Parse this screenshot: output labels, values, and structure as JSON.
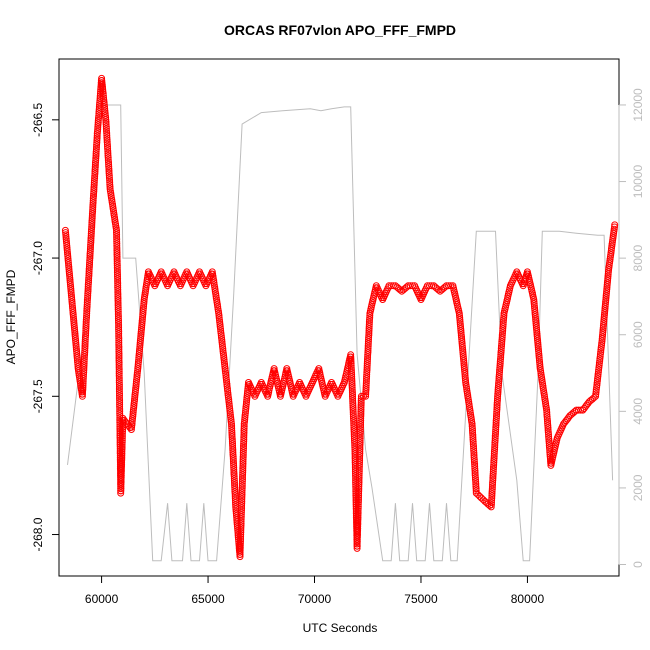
{
  "chart_data": {
    "type": "scatter",
    "title": "ORCAS RF07vlon APO_FFF_FMPD",
    "xlabel": "UTC Seconds",
    "ylabel": "APO_FFF_FMPD",
    "xlim": [
      58000,
      84300
    ],
    "ylim": [
      -268.15,
      -266.28
    ],
    "y2lim": [
      -300,
      13200
    ],
    "x_ticks": [
      60000,
      65000,
      70000,
      75000,
      80000
    ],
    "x_tick_labels": [
      "60000",
      "65000",
      "70000",
      "75000",
      "80000"
    ],
    "y_ticks": [
      -268.0,
      -267.5,
      -267.0,
      -266.5
    ],
    "y_tick_labels": [
      "-268.0",
      "-267.5",
      "-267.0",
      "-266.5"
    ],
    "y2_ticks": [
      0,
      2000,
      4000,
      6000,
      8000,
      10000,
      12000
    ],
    "y2_tick_labels": [
      "0",
      "2000",
      "4000",
      "6000",
      "8000",
      "10000",
      "12000"
    ],
    "grid": false,
    "marker_color": "#ff0000",
    "secondary_color": "#bdbdbd",
    "series": [
      {
        "role": "primary-markers",
        "points": [
          [
            58300,
            -266.9
          ],
          [
            58600,
            -267.15
          ],
          [
            58900,
            -267.4
          ],
          [
            59100,
            -267.5
          ],
          [
            59300,
            -267.2
          ],
          [
            59600,
            -266.8
          ],
          [
            59800,
            -266.55
          ],
          [
            60000,
            -266.35
          ],
          [
            60200,
            -266.5
          ],
          [
            60400,
            -266.75
          ],
          [
            60700,
            -266.9
          ],
          [
            60800,
            -267.25
          ],
          [
            60900,
            -267.85
          ],
          [
            61000,
            -267.58
          ],
          [
            61200,
            -267.6
          ],
          [
            61400,
            -267.62
          ],
          [
            61700,
            -267.4
          ],
          [
            62000,
            -267.15
          ],
          [
            62200,
            -267.05
          ],
          [
            62500,
            -267.1
          ],
          [
            62800,
            -267.05
          ],
          [
            63100,
            -267.1
          ],
          [
            63400,
            -267.05
          ],
          [
            63700,
            -267.1
          ],
          [
            64000,
            -267.05
          ],
          [
            64300,
            -267.1
          ],
          [
            64600,
            -267.05
          ],
          [
            64900,
            -267.1
          ],
          [
            65200,
            -267.05
          ],
          [
            65500,
            -267.2
          ],
          [
            65800,
            -267.4
          ],
          [
            66100,
            -267.6
          ],
          [
            66300,
            -267.9
          ],
          [
            66500,
            -268.08
          ],
          [
            66700,
            -267.6
          ],
          [
            66900,
            -267.45
          ],
          [
            67200,
            -267.5
          ],
          [
            67500,
            -267.45
          ],
          [
            67800,
            -267.5
          ],
          [
            68100,
            -267.4
          ],
          [
            68400,
            -267.5
          ],
          [
            68700,
            -267.4
          ],
          [
            69000,
            -267.5
          ],
          [
            69300,
            -267.45
          ],
          [
            69600,
            -267.5
          ],
          [
            69900,
            -267.45
          ],
          [
            70200,
            -267.4
          ],
          [
            70500,
            -267.5
          ],
          [
            70800,
            -267.45
          ],
          [
            71100,
            -267.5
          ],
          [
            71400,
            -267.45
          ],
          [
            71700,
            -267.35
          ],
          [
            71900,
            -267.7
          ],
          [
            72000,
            -268.05
          ],
          [
            72200,
            -267.5
          ],
          [
            72400,
            -267.5
          ],
          [
            72600,
            -267.2
          ],
          [
            72900,
            -267.1
          ],
          [
            73200,
            -267.15
          ],
          [
            73500,
            -267.1
          ],
          [
            73800,
            -267.1
          ],
          [
            74100,
            -267.12
          ],
          [
            74400,
            -267.1
          ],
          [
            74700,
            -267.1
          ],
          [
            75000,
            -267.15
          ],
          [
            75300,
            -267.1
          ],
          [
            75600,
            -267.1
          ],
          [
            75900,
            -267.12
          ],
          [
            76200,
            -267.1
          ],
          [
            76500,
            -267.1
          ],
          [
            76800,
            -267.2
          ],
          [
            77100,
            -267.45
          ],
          [
            77400,
            -267.6
          ],
          [
            77600,
            -267.85
          ],
          [
            78000,
            -267.88
          ],
          [
            78300,
            -267.9
          ],
          [
            78600,
            -267.5
          ],
          [
            78900,
            -267.2
          ],
          [
            79200,
            -267.1
          ],
          [
            79500,
            -267.05
          ],
          [
            79800,
            -267.1
          ],
          [
            80000,
            -267.05
          ],
          [
            80300,
            -267.15
          ],
          [
            80600,
            -267.4
          ],
          [
            80900,
            -267.55
          ],
          [
            81100,
            -267.75
          ],
          [
            81400,
            -267.65
          ],
          [
            81700,
            -267.6
          ],
          [
            82000,
            -267.57
          ],
          [
            82300,
            -267.55
          ],
          [
            82600,
            -267.55
          ],
          [
            82900,
            -267.52
          ],
          [
            83200,
            -267.5
          ],
          [
            83500,
            -267.3
          ],
          [
            83800,
            -267.05
          ],
          [
            84100,
            -266.88
          ]
        ]
      },
      {
        "role": "secondary-line",
        "points": [
          [
            58400,
            2600
          ],
          [
            59400,
            7000
          ],
          [
            60000,
            12000
          ],
          [
            60200,
            12000
          ],
          [
            60900,
            12000
          ],
          [
            61000,
            8000
          ],
          [
            61600,
            8000
          ],
          [
            62000,
            5000
          ],
          [
            62400,
            100
          ],
          [
            62800,
            100
          ],
          [
            63100,
            1600
          ],
          [
            63300,
            100
          ],
          [
            63800,
            100
          ],
          [
            64000,
            1600
          ],
          [
            64200,
            100
          ],
          [
            64600,
            100
          ],
          [
            64800,
            1600
          ],
          [
            65000,
            100
          ],
          [
            65400,
            100
          ],
          [
            65800,
            3000
          ],
          [
            66200,
            7000
          ],
          [
            66600,
            11500
          ],
          [
            67200,
            11700
          ],
          [
            67500,
            11800
          ],
          [
            68500,
            11850
          ],
          [
            69800,
            11900
          ],
          [
            70300,
            11850
          ],
          [
            70800,
            11900
          ],
          [
            71400,
            11950
          ],
          [
            71700,
            11950
          ],
          [
            72000,
            5500
          ],
          [
            72400,
            3000
          ],
          [
            72700,
            2000
          ],
          [
            73200,
            100
          ],
          [
            73600,
            100
          ],
          [
            73800,
            1600
          ],
          [
            74000,
            100
          ],
          [
            74400,
            100
          ],
          [
            74600,
            1600
          ],
          [
            74800,
            100
          ],
          [
            75200,
            100
          ],
          [
            75400,
            1600
          ],
          [
            75600,
            100
          ],
          [
            76000,
            100
          ],
          [
            76200,
            1600
          ],
          [
            76400,
            100
          ],
          [
            76700,
            100
          ],
          [
            77000,
            3000
          ],
          [
            77600,
            8700
          ],
          [
            78500,
            8700
          ],
          [
            78800,
            5000
          ],
          [
            79500,
            2200
          ],
          [
            79800,
            100
          ],
          [
            80100,
            100
          ],
          [
            80500,
            5000
          ],
          [
            80700,
            8700
          ],
          [
            81500,
            8700
          ],
          [
            82300,
            8650
          ],
          [
            83300,
            8600
          ],
          [
            83600,
            8600
          ],
          [
            84000,
            2200
          ]
        ]
      }
    ]
  }
}
